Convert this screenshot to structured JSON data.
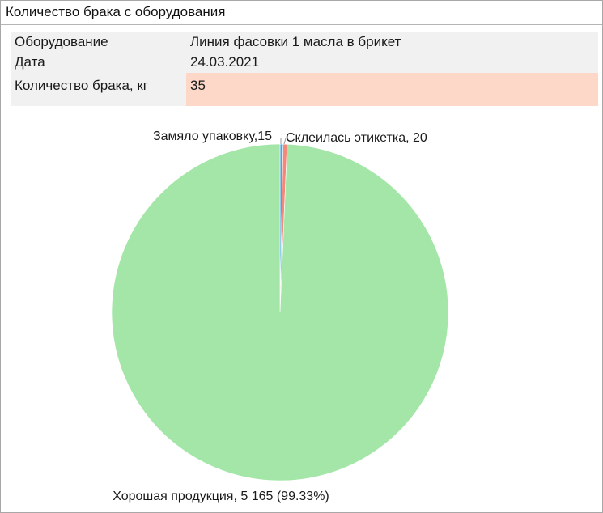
{
  "window": {
    "title": "Количество брака с оборудования"
  },
  "info": {
    "equipment_label": "Оборудование",
    "equipment_value": "Линия фасовки 1 масла в брикет",
    "date_label": "Дата",
    "date_value": "24.03.2021",
    "defect_label": "Количество брака, кг",
    "defect_value": "35"
  },
  "chart_data": {
    "type": "pie",
    "slices": [
      {
        "label": "Замяло упаковку",
        "value": 15,
        "color": "#4aa3df",
        "display": "Замяло упаковку,15"
      },
      {
        "label": "Склеилась этикетка",
        "value": 20,
        "color": "#f2897a",
        "display": "Склеилась этикетка, 20"
      },
      {
        "label": "Хорошая продукция",
        "value": 5165,
        "color": "#a4e6a8",
        "display": "Хорошая продукция, 5 165 (99.33%)"
      }
    ]
  }
}
